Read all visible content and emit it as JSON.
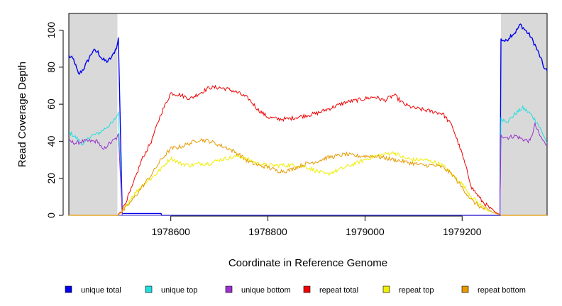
{
  "chart_data": {
    "type": "line",
    "title": "",
    "xlabel": "Coordinate in Reference Genome",
    "ylabel": "Read Coverage Depth",
    "xlim": [
      1978390,
      1979375
    ],
    "ylim": [
      0,
      109
    ],
    "x_ticks": [
      1978600,
      1978800,
      1979000,
      1979200
    ],
    "x_tick_labels": [
      "1978600",
      "1978800",
      "1979000",
      "1979200"
    ],
    "y_ticks": [
      0,
      20,
      40,
      60,
      80,
      100
    ],
    "y_tick_labels": [
      "0",
      "20",
      "40",
      "60",
      "80",
      "100"
    ],
    "shaded_regions": [
      {
        "from": 1978390,
        "to": 1978490,
        "color": "#d9d9d9"
      },
      {
        "from": 1979280,
        "to": 1979375,
        "color": "#d9d9d9"
      }
    ],
    "legend_position": "bottom",
    "series": [
      {
        "name": "unique total",
        "color": "#0000ee",
        "x": [
          1978390,
          1978400,
          1978410,
          1978420,
          1978430,
          1978440,
          1978450,
          1978460,
          1978470,
          1978480,
          1978490,
          1978492,
          1978500,
          1978580,
          1978581,
          1979278,
          1979280,
          1979290,
          1979300,
          1979310,
          1979320,
          1979330,
          1979340,
          1979350,
          1979360,
          1979370,
          1979375
        ],
        "y": [
          86,
          84,
          76,
          79,
          84,
          89,
          88,
          84,
          83,
          86,
          92,
          96,
          1,
          1,
          0,
          0,
          95,
          94,
          97,
          99,
          103,
          100,
          97,
          92,
          86,
          79,
          78
        ]
      },
      {
        "name": "unique top",
        "color": "#22dddd",
        "x": [
          1978390,
          1978405,
          1978420,
          1978435,
          1978450,
          1978465,
          1978480,
          1978490,
          1978492,
          1978500,
          1979278,
          1979280,
          1979295,
          1979310,
          1979325,
          1979340,
          1979355,
          1979370,
          1979375
        ],
        "y": [
          45,
          42,
          38,
          43,
          44,
          47,
          50,
          54,
          56,
          0,
          0,
          52,
          51,
          55,
          58,
          55,
          50,
          42,
          39
        ],
        "fill_gap": true
      },
      {
        "name": "unique bottom",
        "color": "#9932cc",
        "x": [
          1978390,
          1978405,
          1978420,
          1978435,
          1978450,
          1978460,
          1978470,
          1978480,
          1978490,
          1978492,
          1978500,
          1979278,
          1979280,
          1979295,
          1979310,
          1979325,
          1979340,
          1979350,
          1979360,
          1979370,
          1979375
        ],
        "y": [
          40,
          39,
          40,
          40,
          40,
          35,
          38,
          40,
          42,
          44,
          0,
          0,
          43,
          42,
          43,
          41,
          40,
          49,
          43,
          39,
          38
        ]
      },
      {
        "name": "repeat total",
        "color": "#ee0000",
        "x": [
          1978490,
          1978500,
          1978520,
          1978540,
          1978560,
          1978580,
          1978600,
          1978620,
          1978640,
          1978660,
          1978680,
          1978700,
          1978720,
          1978740,
          1978760,
          1978780,
          1978800,
          1978820,
          1978840,
          1978860,
          1978880,
          1978900,
          1978920,
          1978940,
          1978960,
          1978980,
          1979000,
          1979020,
          1979040,
          1979060,
          1979080,
          1979100,
          1979120,
          1979140,
          1979160,
          1979180,
          1979200,
          1979220,
          1979240,
          1979260,
          1979280
        ],
        "y": [
          0,
          3,
          15,
          30,
          40,
          55,
          66,
          65,
          63,
          66,
          69,
          69,
          68,
          66,
          63,
          57,
          53,
          52,
          52,
          53,
          54,
          55,
          57,
          59,
          61,
          62,
          63,
          64,
          62,
          65,
          60,
          58,
          57,
          56,
          55,
          48,
          33,
          15,
          8,
          3,
          0
        ]
      },
      {
        "name": "repeat top",
        "color": "#eeee00",
        "x": [
          1978490,
          1978500,
          1978520,
          1978540,
          1978560,
          1978580,
          1978600,
          1978620,
          1978640,
          1978660,
          1978680,
          1978700,
          1978720,
          1978740,
          1978760,
          1978780,
          1978800,
          1978820,
          1978840,
          1978860,
          1978880,
          1978900,
          1978920,
          1978940,
          1978960,
          1978980,
          1979000,
          1979020,
          1979040,
          1979060,
          1979080,
          1979100,
          1979120,
          1979140,
          1979160,
          1979180,
          1979200,
          1979220,
          1979240,
          1979260,
          1979280
        ],
        "y": [
          0,
          2,
          10,
          16,
          20,
          25,
          31,
          28,
          27,
          28,
          28,
          30,
          31,
          32,
          30,
          28,
          27,
          27,
          27,
          27,
          26,
          24,
          22,
          24,
          26,
          28,
          30,
          32,
          33,
          34,
          31,
          30,
          30,
          29,
          27,
          22,
          17,
          10,
          5,
          2,
          0
        ]
      },
      {
        "name": "repeat bottom",
        "color": "#e69900",
        "x": [
          1978490,
          1978500,
          1978520,
          1978540,
          1978560,
          1978580,
          1978600,
          1978620,
          1978640,
          1978660,
          1978680,
          1978700,
          1978720,
          1978740,
          1978760,
          1978780,
          1978800,
          1978820,
          1978840,
          1978860,
          1978880,
          1978900,
          1978920,
          1978940,
          1978960,
          1978980,
          1979000,
          1979020,
          1979040,
          1979060,
          1979080,
          1979100,
          1979120,
          1979140,
          1979160,
          1979180,
          1979200,
          1979220,
          1979240,
          1979260,
          1979280
        ],
        "y": [
          0,
          2,
          8,
          15,
          22,
          30,
          36,
          37,
          39,
          41,
          40,
          38,
          36,
          33,
          29,
          27,
          26,
          24,
          24,
          26,
          28,
          29,
          31,
          32,
          33,
          32,
          32,
          32,
          31,
          30,
          29,
          28,
          27,
          27,
          26,
          22,
          15,
          8,
          4,
          2,
          0
        ]
      }
    ]
  }
}
